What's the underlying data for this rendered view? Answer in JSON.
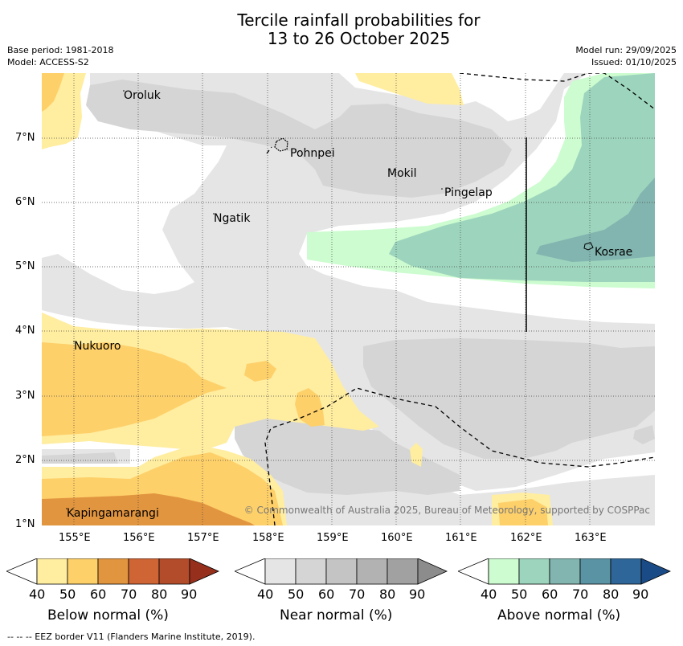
{
  "title": {
    "line1": "Tercile rainfall probabilities for",
    "line2": "13 to 26 October 2025"
  },
  "meta": {
    "base_period": "Base period: 1981-2018",
    "model": "Model: ACCESS-S2",
    "model_run": "Model run: 29/09/2025",
    "issued": "Issued: 01/10/2025"
  },
  "axes": {
    "x_ticks": [
      "155°E",
      "156°E",
      "157°E",
      "158°E",
      "159°E",
      "160°E",
      "161°E",
      "162°E",
      "163°E"
    ],
    "y_ticks": [
      "7°N",
      "6°N",
      "5°N",
      "4°N",
      "3°N",
      "2°N",
      "1°N"
    ],
    "lon_range": [
      154.55,
      164.05
    ],
    "lat_range": [
      1.0,
      8.0
    ]
  },
  "places": [
    {
      "name": "Oroluk"
    },
    {
      "name": "Pohnpei"
    },
    {
      "name": "Mokil"
    },
    {
      "name": "Pingelap"
    },
    {
      "name": "Ngatik"
    },
    {
      "name": "Kosrae"
    },
    {
      "name": "Nukuoro"
    },
    {
      "name": "Kapingamarangi"
    }
  ],
  "copyright": "© Commonwealth of Australia 2025, Bureau of Meteorology, supported by COSPPac",
  "legend": {
    "ticks": [
      "40",
      "50",
      "60",
      "70",
      "80",
      "90"
    ],
    "below": {
      "title": "Below normal (%)",
      "colors": [
        "#ffeda0",
        "#fed06a",
        "#e2953f",
        "#cf6535",
        "#b24c2a",
        "#96301d"
      ]
    },
    "near": {
      "title": "Near normal (%)",
      "colors": [
        "#e5e5e5",
        "#d5d5d5",
        "#c4c4c4",
        "#b2b2b2",
        "#a1a1a1",
        "#8c8c8c"
      ]
    },
    "above": {
      "title": "Above normal (%)",
      "colors": [
        "#ccfccf",
        "#9dd4bd",
        "#82b5af",
        "#5a93a3",
        "#2f6699",
        "#1a4b86"
      ]
    }
  },
  "footer": "--  --  -- EEZ border V11 (Flanders Marine Institute, 2019)."
}
